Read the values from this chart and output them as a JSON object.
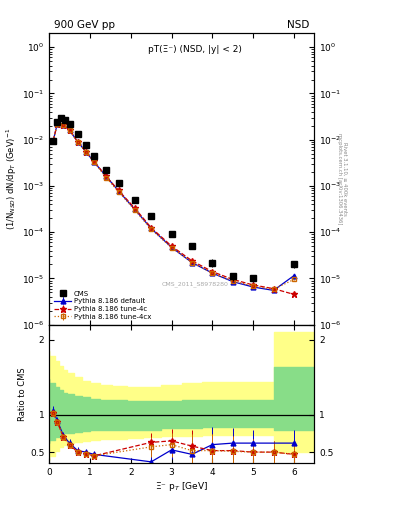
{
  "title_left": "900 GeV pp",
  "title_right": "NSD",
  "plot_title": "pT(Ξ⁻) (NSD, |y| < 2)",
  "ylabel_main": "(1/N$_{NSD}$) dN/dp$_T$ (GeV)$^{-1}$",
  "ylabel_ratio": "Ratio to CMS",
  "xlabel": "Ξ⁻ p$_T$ [GeV]",
  "right_label_1": "Rivet 3.1.10, ≥ 400k events",
  "right_label_2": "mcplots.cern.ch [arXiv:1306.3436]",
  "watermark": "CMS_2011_S8978280",
  "cms_x": [
    0.1,
    0.2,
    0.3,
    0.4,
    0.5,
    0.7,
    0.9,
    1.1,
    1.4,
    1.7,
    2.1,
    2.5,
    3.0,
    3.5,
    4.0,
    4.5,
    5.0,
    6.0
  ],
  "cms_y": [
    0.0095,
    0.024,
    0.03,
    0.027,
    0.022,
    0.013,
    0.0075,
    0.0045,
    0.0022,
    0.00115,
    0.0005,
    0.00022,
    9e-05,
    5e-05,
    2.2e-05,
    1.1e-05,
    1e-05,
    2e-05
  ],
  "cms_yerr": [
    0.001,
    0.002,
    0.002,
    0.002,
    0.002,
    0.001,
    0.0006,
    0.0004,
    0.0002,
    0.0001,
    5e-05,
    2e-05,
    1e-05,
    7e-06,
    4e-06,
    2e-06,
    1.8e-06,
    3e-06
  ],
  "py_default_x": [
    0.1,
    0.2,
    0.35,
    0.5,
    0.7,
    0.9,
    1.1,
    1.4,
    1.7,
    2.1,
    2.5,
    3.0,
    3.5,
    4.0,
    4.5,
    5.0,
    5.5,
    6.0
  ],
  "py_default_y": [
    0.0095,
    0.022,
    0.021,
    0.016,
    0.009,
    0.0055,
    0.0033,
    0.0016,
    0.00078,
    0.00031,
    0.00012,
    4.7e-05,
    2.2e-05,
    1.3e-05,
    8.5e-06,
    6.5e-06,
    5.5e-06,
    1.15e-05
  ],
  "py_default_yerr": [
    0.0003,
    0.0007,
    0.0006,
    0.0005,
    0.0003,
    0.0002,
    0.00012,
    6e-05,
    3e-05,
    1.2e-05,
    4.5e-06,
    1.8e-06,
    9e-07,
    6e-07,
    3.5e-07,
    2.8e-07,
    2.3e-07,
    5e-07
  ],
  "py_tune4c_x": [
    0.1,
    0.2,
    0.35,
    0.5,
    0.7,
    0.9,
    1.1,
    1.4,
    1.7,
    2.1,
    2.5,
    3.0,
    3.5,
    4.0,
    4.5,
    5.0,
    5.5,
    6.0
  ],
  "py_tune4c_y": [
    0.0095,
    0.022,
    0.021,
    0.016,
    0.009,
    0.0055,
    0.0034,
    0.0016,
    0.0008,
    0.00033,
    0.000125,
    5e-05,
    2.4e-05,
    1.4e-05,
    9.5e-06,
    7.2e-06,
    6e-06,
    4.5e-06
  ],
  "py_tune4c_yerr": [
    0.0003,
    0.0007,
    0.0006,
    0.0005,
    0.0003,
    0.0002,
    0.00012,
    6e-05,
    3e-05,
    1.2e-05,
    4.5e-06,
    1.8e-06,
    9e-07,
    6e-07,
    3.5e-07,
    2.8e-07,
    2.3e-07,
    1.8e-07
  ],
  "py_tune4cx_x": [
    0.1,
    0.2,
    0.35,
    0.5,
    0.7,
    0.9,
    1.1,
    1.4,
    1.7,
    2.1,
    2.5,
    3.0,
    3.5,
    4.0,
    4.5,
    5.0,
    5.5,
    6.0
  ],
  "py_tune4cx_y": [
    0.0095,
    0.022,
    0.021,
    0.016,
    0.009,
    0.0055,
    0.0033,
    0.0015,
    0.00075,
    0.0003,
    0.000115,
    4.6e-05,
    2.2e-05,
    1.3e-05,
    8.8e-06,
    6.8e-06,
    5.8e-06,
    9.5e-06
  ],
  "py_tune4cx_yerr": [
    0.0003,
    0.0007,
    0.0006,
    0.0005,
    0.0003,
    0.0002,
    0.00012,
    6e-05,
    3e-05,
    1.2e-05,
    4.5e-06,
    1.8e-06,
    9e-07,
    6e-07,
    3.5e-07,
    2.8e-07,
    2.3e-07,
    4e-07
  ],
  "ratio_default_x": [
    0.1,
    0.2,
    0.35,
    0.5,
    0.7,
    0.9,
    1.1,
    2.5,
    3.0,
    3.5,
    4.0,
    4.5,
    5.0,
    6.0
  ],
  "ratio_default_y": [
    1.05,
    0.92,
    0.72,
    0.62,
    0.52,
    0.5,
    0.47,
    0.37,
    0.53,
    0.47,
    0.6,
    0.62,
    0.62,
    0.62
  ],
  "ratio_default_yerr": [
    0.06,
    0.05,
    0.05,
    0.05,
    0.05,
    0.04,
    0.04,
    0.16,
    0.12,
    0.22,
    0.24,
    0.2,
    0.17,
    0.17
  ],
  "ratio_tune4c_x": [
    0.1,
    0.2,
    0.35,
    0.5,
    0.7,
    0.9,
    1.1,
    2.5,
    3.0,
    3.5,
    4.0,
    4.5,
    5.0,
    5.5,
    6.0
  ],
  "ratio_tune4c_y": [
    1.02,
    0.9,
    0.7,
    0.6,
    0.5,
    0.48,
    0.45,
    0.63,
    0.65,
    0.58,
    0.52,
    0.52,
    0.5,
    0.5,
    0.47
  ],
  "ratio_tune4c_yerr": [
    0.04,
    0.04,
    0.04,
    0.04,
    0.04,
    0.03,
    0.03,
    0.13,
    0.16,
    0.22,
    0.22,
    0.2,
    0.17,
    0.15,
    0.15
  ],
  "ratio_tune4cx_x": [
    0.1,
    0.2,
    0.35,
    0.5,
    0.7,
    0.9,
    1.1,
    2.5,
    3.0,
    3.5,
    4.0,
    4.5,
    5.0,
    5.5,
    6.0
  ],
  "ratio_tune4cx_y": [
    1.02,
    0.9,
    0.7,
    0.6,
    0.5,
    0.48,
    0.45,
    0.57,
    0.6,
    0.52,
    0.52,
    0.51,
    0.5,
    0.5,
    0.47
  ],
  "ratio_tune4cx_yerr": [
    0.04,
    0.04,
    0.04,
    0.04,
    0.04,
    0.03,
    0.03,
    0.13,
    0.16,
    0.22,
    0.22,
    0.2,
    0.17,
    0.15,
    0.15
  ],
  "band_yellow_x": [
    0.0,
    0.15,
    0.25,
    0.35,
    0.45,
    0.6,
    0.8,
    1.0,
    1.25,
    1.55,
    1.9,
    2.3,
    2.75,
    3.25,
    3.75,
    4.25,
    4.75,
    5.5,
    6.5
  ],
  "band_yellow_lo": [
    0.4,
    0.45,
    0.52,
    0.57,
    0.6,
    0.62,
    0.63,
    0.65,
    0.66,
    0.67,
    0.68,
    0.69,
    0.7,
    0.72,
    0.72,
    0.73,
    0.73,
    0.73,
    0.5
  ],
  "band_yellow_hi": [
    1.85,
    1.78,
    1.72,
    1.65,
    1.6,
    1.55,
    1.5,
    1.45,
    1.42,
    1.4,
    1.38,
    1.37,
    1.37,
    1.4,
    1.42,
    1.43,
    1.43,
    1.43,
    2.1
  ],
  "band_green_x": [
    0.0,
    0.15,
    0.25,
    0.35,
    0.45,
    0.6,
    0.8,
    1.0,
    1.25,
    1.55,
    1.9,
    2.3,
    2.75,
    3.25,
    3.75,
    4.25,
    4.75,
    5.5,
    6.5
  ],
  "band_green_lo": [
    0.62,
    0.66,
    0.7,
    0.73,
    0.75,
    0.76,
    0.77,
    0.78,
    0.79,
    0.79,
    0.8,
    0.8,
    0.8,
    0.82,
    0.82,
    0.83,
    0.83,
    0.83,
    0.8
  ],
  "band_green_hi": [
    1.48,
    1.42,
    1.37,
    1.33,
    1.29,
    1.27,
    1.25,
    1.23,
    1.21,
    1.2,
    1.19,
    1.18,
    1.18,
    1.18,
    1.19,
    1.2,
    1.2,
    1.2,
    1.63
  ],
  "color_cms": "#000000",
  "color_default": "#0000cc",
  "color_tune4c": "#cc0000",
  "color_tune4cx": "#cc6600",
  "ylim_main": [
    1e-06,
    2.0
  ],
  "ylim_ratio": [
    0.35,
    2.2
  ],
  "xlim": [
    0.0,
    6.5
  ],
  "yticks_ratio": [
    0.5,
    1.0,
    2.0
  ],
  "ytick_labels_ratio": [
    "0.5",
    "1",
    "2"
  ]
}
